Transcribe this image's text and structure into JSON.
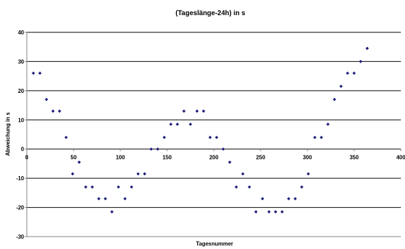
{
  "chart_data": {
    "type": "scatter",
    "title": "(Tageslänge-24h) in s",
    "xlabel": "Tagesnummer",
    "ylabel": "Abweichung in s",
    "xlim": [
      0,
      400
    ],
    "ylim": [
      -30,
      40
    ],
    "xticks": [
      0,
      50,
      100,
      150,
      200,
      250,
      300,
      350,
      400
    ],
    "yticks": [
      -30,
      -20,
      -10,
      0,
      10,
      20,
      30,
      40
    ],
    "xtick_labels": [
      "0",
      "50",
      "100",
      "150",
      "200",
      "250",
      "300",
      "350",
      "400"
    ],
    "ytick_labels": [
      "-30",
      "-20",
      "-10",
      "0",
      "10",
      "20",
      "30",
      "40"
    ],
    "grid": "horizontal",
    "legend": "none",
    "marker": "diamond",
    "colors": {
      "marker": "#1f1f7a",
      "grid": "#000000",
      "axis": "#808080"
    },
    "series": [
      {
        "x": [
          7,
          14,
          21,
          28,
          35,
          42,
          49,
          56,
          63,
          70,
          77,
          84,
          91,
          98,
          105,
          112,
          119,
          126,
          133,
          140,
          147,
          154,
          161,
          168,
          175,
          182,
          189,
          196,
          203,
          210,
          217,
          224,
          231,
          238,
          245,
          252,
          259,
          266,
          273,
          280,
          287,
          294,
          301,
          308,
          315,
          322,
          329,
          336,
          343,
          350,
          357,
          364
        ],
        "y": [
          26,
          26,
          17,
          13,
          13,
          4,
          -8.5,
          -4.5,
          -13,
          -13,
          -17,
          -17,
          -21.5,
          -13,
          -17,
          -13,
          -8.5,
          -8.5,
          0,
          0,
          4,
          8.5,
          8.5,
          13,
          8.5,
          13,
          13,
          4,
          4,
          0,
          -4.5,
          -13,
          -8.5,
          -13,
          -21.5,
          -17,
          -21.5,
          -21.5,
          -21.5,
          -17,
          -17,
          -13,
          -8.5,
          4,
          4,
          8.5,
          17,
          21.5,
          26,
          26,
          30,
          34.5
        ]
      }
    ]
  }
}
